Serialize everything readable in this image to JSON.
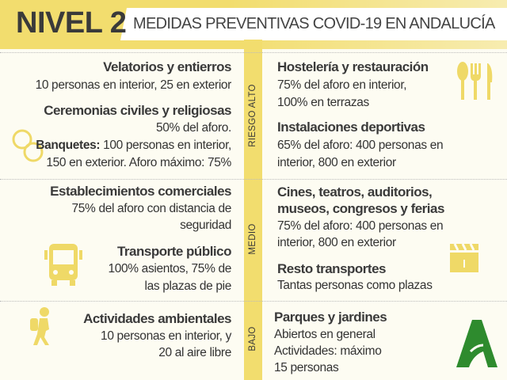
{
  "header": {
    "level": "NIVEL 2",
    "title": "MEDIDAS PREVENTIVAS COVID-19 EN ANDALUCÍA"
  },
  "levels": {
    "high": "RIESGO ALTO",
    "medium": "MEDIO",
    "low": "BAJO"
  },
  "high": {
    "velatorios": {
      "title": "Velatorios y entierros",
      "body": "10 personas en interior, 25 en exterior"
    },
    "ceremonias": {
      "title": "Ceremonias civiles y religiosas",
      "body": "50% del aforo.",
      "banquetes_label": "Banquetes:",
      "banquetes_body": " 100 personas en interior,",
      "banquetes_body2": "150 en exterior. Aforo máximo: 75%"
    },
    "hosteleria": {
      "title": "Hostelería y restauración",
      "line1": "75% del aforo en interior,",
      "line2": "100% en terrazas"
    },
    "deportivas": {
      "title": "Instalaciones deportivas",
      "line1": "65% del aforo: 400 personas en",
      "line2": "interior, 800 en exterior"
    }
  },
  "medium": {
    "comercios": {
      "title": "Establecimientos comerciales",
      "line1": "75% del aforo con distancia de",
      "line2": "seguridad"
    },
    "transporte": {
      "title": "Transporte público",
      "line1": "100% asientos, 75% de",
      "line2": "las plazas de pie"
    },
    "cines": {
      "title1": "Cines, teatros, auditorios,",
      "title2": "museos, congresos y ferias",
      "line1": "75% del aforo: 400 personas en",
      "line2": "interior, 800 en exterior"
    },
    "resto": {
      "title": "Resto transportes",
      "line1": "Tantas personas como plazas"
    }
  },
  "low": {
    "ambientales": {
      "title": "Actividades ambientales",
      "line1": "10 personas en interior, y",
      "line2": "20 al aire libre"
    },
    "parques": {
      "title": "Parques y jardines",
      "line1": "Abiertos en general",
      "line2": "Actividades: máximo",
      "line3": "15 personas"
    }
  },
  "colors": {
    "yellow": "#f2dd6e",
    "icon_yellow": "#efd967",
    "logo_green": "#2e8b2e",
    "background": "#fdfcf2"
  }
}
